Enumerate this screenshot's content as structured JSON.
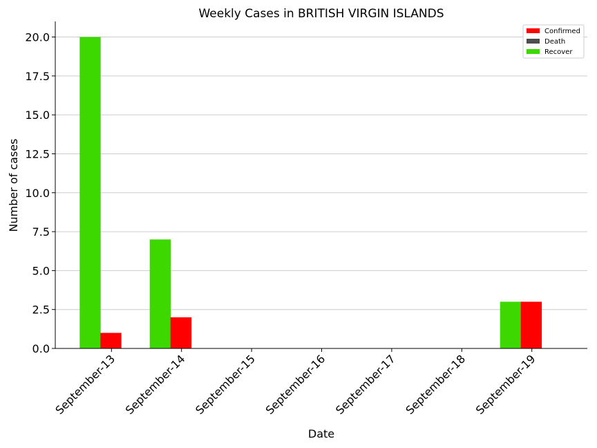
{
  "chart_data": {
    "type": "bar",
    "title": "Weekly Cases in BRITISH VIRGIN ISLANDS",
    "xlabel": "Date",
    "ylabel": "Number of cases",
    "categories": [
      "September-13",
      "September-14",
      "September-15",
      "September-16",
      "September-17",
      "September-18",
      "September-19"
    ],
    "series": [
      {
        "name": "Confirmed",
        "color": "#ff0000",
        "values": [
          1,
          2,
          0,
          0,
          0,
          0,
          3
        ]
      },
      {
        "name": "Death",
        "color": "#4d4d4d",
        "values": [
          0,
          0,
          0,
          0,
          0,
          0,
          0
        ]
      },
      {
        "name": "Recover",
        "color": "#3dd800",
        "values": [
          20,
          7,
          0,
          0,
          0,
          0,
          3
        ]
      }
    ],
    "ylim": [
      0,
      21
    ],
    "yticks": [
      "0.0",
      "2.5",
      "5.0",
      "7.5",
      "10.0",
      "12.5",
      "15.0",
      "17.5",
      "20.0"
    ],
    "grid": "horizontal",
    "legend_position": "top-right"
  }
}
